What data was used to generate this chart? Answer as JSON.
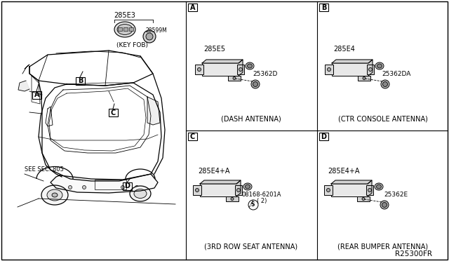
{
  "bg_color": "#ffffff",
  "line_color": "#000000",
  "text_color": "#000000",
  "diagram_code": "R25300FR",
  "part_labels": {
    "key_fob_main": "285E3",
    "key_fob_oval": "28599M",
    "key_fob_caption": "(KEY FOB)",
    "dash_main": "285E5",
    "dash_bolt": "25362D",
    "dash_caption": "(DASH ANTENNA)",
    "ctr_main": "285E4",
    "ctr_bolt": "25362DA",
    "ctr_caption": "(CTR CONSOLE ANTENNA)",
    "third_main": "285E4+A",
    "third_screw": "08168-6201A",
    "third_count": "( 2)",
    "third_caption": "(3RD ROW SEAT ANTENNA)",
    "rear_main": "285E4+A",
    "rear_bolt": "25362E",
    "rear_caption": "(REAR BUMPER ANTENNA)"
  },
  "see_sec": "SEE SEC. 805"
}
